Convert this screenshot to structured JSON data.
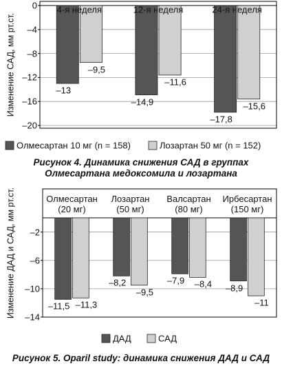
{
  "chart_data": [
    {
      "type": "bar",
      "y_label": "Изменение САД, мм рт.ст.",
      "categories": [
        "4-я неделя",
        "12-я неделя",
        "24-я неделя"
      ],
      "series": [
        {
          "name": "Олмесартан 10 мг (n = 158)",
          "color": "#555555",
          "values": [
            -13,
            -14.9,
            -17.8
          ],
          "value_labels": [
            "–13",
            "–14,9",
            "–17,8"
          ]
        },
        {
          "name": "Лозартан 50 мг (n = 152)",
          "color": "#d0d0d0",
          "values": [
            -9.5,
            -11.6,
            -15.6
          ],
          "value_labels": [
            "–9,5",
            "–11,6",
            "–15,6"
          ]
        }
      ],
      "ylim": [
        0,
        -20
      ],
      "yticks": [
        0,
        {
          "value": -4,
          "label": "–4"
        },
        {
          "value": -8,
          "label": "–8"
        },
        {
          "value": -12,
          "label": "–12"
        },
        {
          "value": -16,
          "label": "–16"
        },
        {
          "value": -20,
          "label": "–20"
        }
      ],
      "grid": true,
      "caption": "Рисунок 4. Динамика снижения САД в группах Олмесартана медоксомила и лозартана"
    },
    {
      "type": "bar",
      "y_label": "Изменение ДАД и САД, мм рт.ст.",
      "categories": [
        "Олмесартан\n(20 мг)",
        "Лозартан\n(50 мг)",
        "Валсартан\n(80 мг)",
        "Ирбесартан\n(150 мг)"
      ],
      "series": [
        {
          "name": "ДАД",
          "color": "#555555",
          "values": [
            -11.5,
            -8.2,
            -7.9,
            -8.9
          ],
          "value_labels": [
            "–11,5",
            "–8,2",
            "–7,9",
            "–8,9"
          ]
        },
        {
          "name": "САД",
          "color": "#d0d0d0",
          "values": [
            -11.3,
            -9.5,
            -8.4,
            -11
          ],
          "value_labels": [
            "–11,3",
            "–9,5",
            "–8,4",
            "–11"
          ]
        }
      ],
      "ylim": [
        0,
        -14
      ],
      "yticks": [
        {
          "value": -2,
          "label": "–2"
        },
        {
          "value": -6,
          "label": "–6"
        },
        {
          "value": -10,
          "label": "–10"
        },
        {
          "value": -14,
          "label": "–14"
        }
      ],
      "grid": true,
      "caption": "Рисунок 5. Oparil study: динамика снижения ДАД и САД"
    }
  ]
}
